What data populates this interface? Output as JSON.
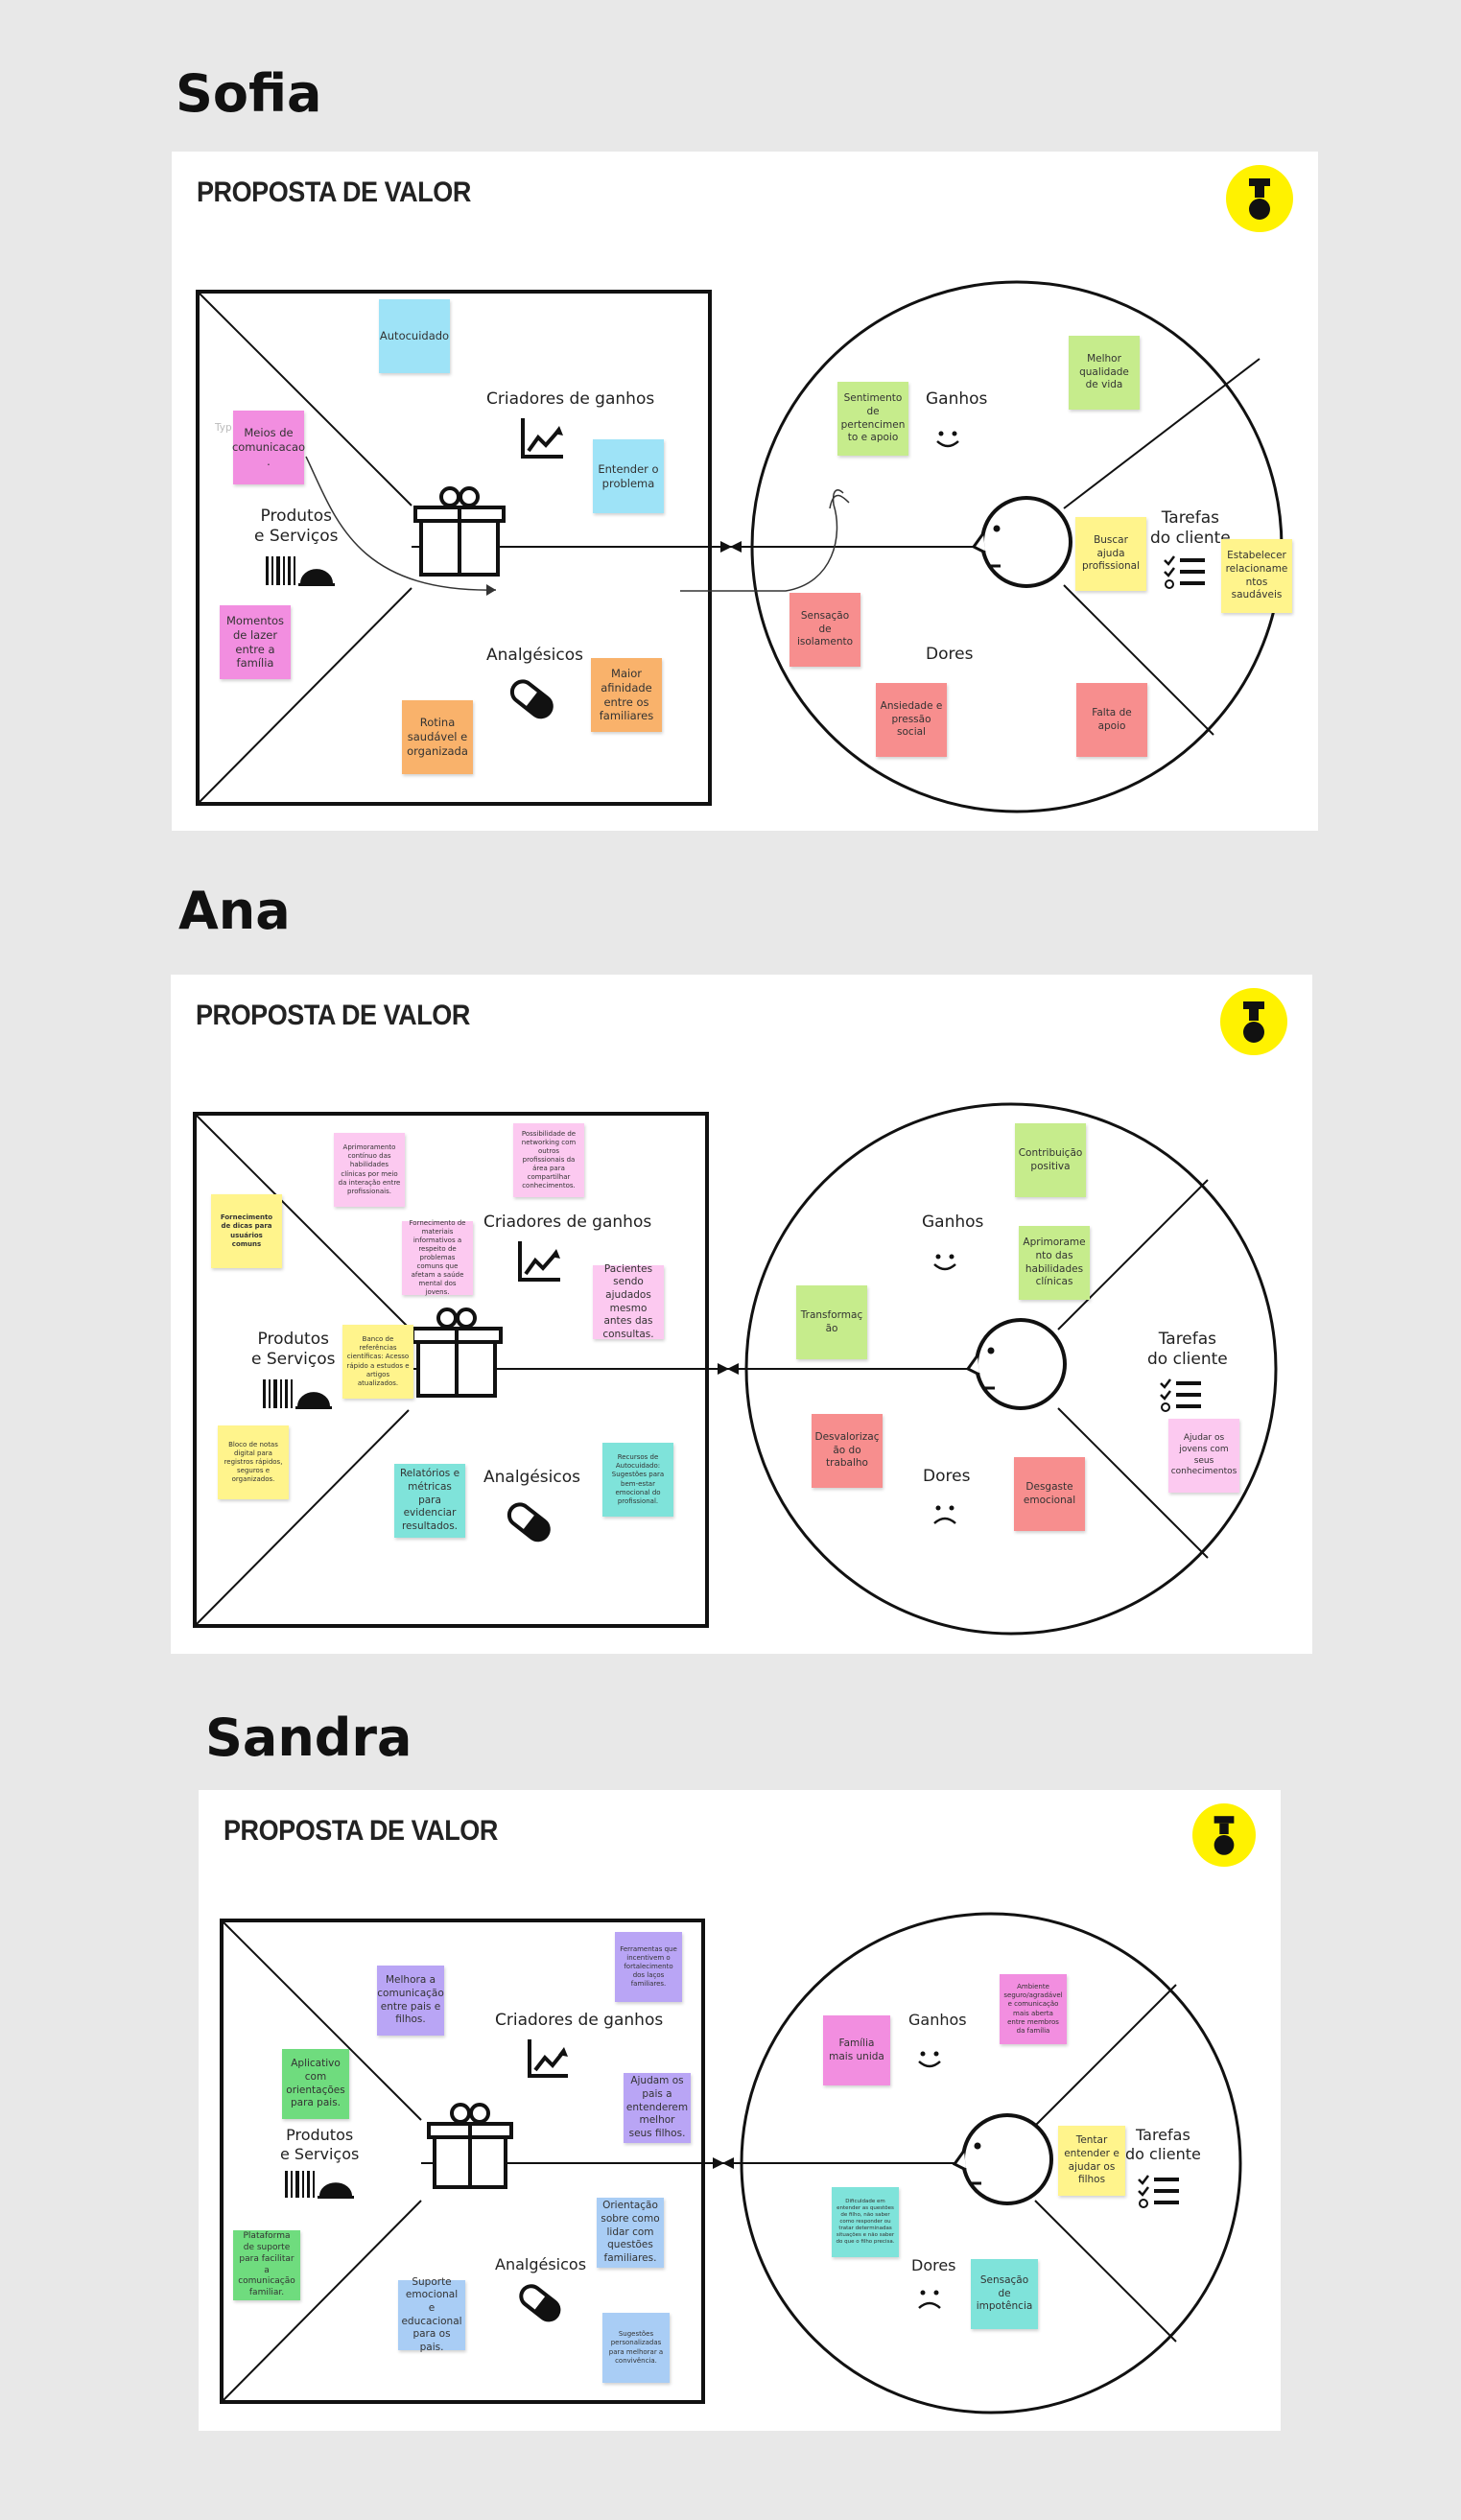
{
  "personas": [
    {
      "name": "Sofia",
      "title": "PROPOSTA DE VALOR",
      "labels": {
        "criadores": "Criadores de ganhos",
        "produtos": "Produtos\ne Serviços",
        "analgesicos": "Analgésicos",
        "ganhos": "Ganhos",
        "dores": "Dores",
        "tarefas": "Tarefas\ndo cliente"
      },
      "extra_text": "Typ",
      "stickies": [
        {
          "text": "Autocuidado",
          "color": "#9ee3f7"
        },
        {
          "text": "Meios de comunicacao .",
          "color": "#f28ee0"
        },
        {
          "text": "Entender o problema",
          "color": "#9ee3f7"
        },
        {
          "text": "Momentos de lazer entre a família",
          "color": "#f28ee0"
        },
        {
          "text": "Maior afinidade entre os familiares",
          "color": "#f9b26b"
        },
        {
          "text": "Rotina saudável e organizada",
          "color": "#f9b26b"
        },
        {
          "text": "Sentimento de pertencimen to e apoio",
          "color": "#c6ec8c"
        },
        {
          "text": "Melhor qualidade de vida",
          "color": "#c6ec8c"
        },
        {
          "text": "Buscar ajuda profissional",
          "color": "#fff48c"
        },
        {
          "text": "Estabelecer relacioname ntos saudáveis",
          "color": "#fff48c"
        },
        {
          "text": "Sensação de isolamento",
          "color": "#f78e8e"
        },
        {
          "text": "Ansiedade e pressão social",
          "color": "#f78e8e"
        },
        {
          "text": "Falta de apoio",
          "color": "#f78e8e"
        }
      ]
    },
    {
      "name": "Ana",
      "title": "PROPOSTA DE VALOR",
      "labels": {
        "criadores": "Criadores de ganhos",
        "produtos": "Produtos\ne Serviços",
        "analgesicos": "Analgésicos",
        "ganhos": "Ganhos",
        "dores": "Dores",
        "tarefas": "Tarefas\ndo cliente"
      },
      "stickies": [
        {
          "text": "Aprimoramento contínuo das habilidades clínicas por meio da interação entre profissionais.",
          "color": "#fcc9f0"
        },
        {
          "text": "Possibilidade de networking com outros profissionais da área para compartilhar conhecimentos.",
          "color": "#fcc9f0"
        },
        {
          "text": "Fornecimento de dicas para usuários comuns",
          "color": "#fff48c"
        },
        {
          "text": "Fornecimento de materiais informativos a respeito de problemas comuns que afetam a saúde mental dos jovens.",
          "color": "#fcc9f0"
        },
        {
          "text": "Pacientes sendo ajudados mesmo antes das consultas.",
          "color": "#fcc9f0"
        },
        {
          "text": "Banco de referências científicas: Acesso rápido a estudos e artigos atualizados.",
          "color": "#fff48c"
        },
        {
          "text": "Bloco de notas digital para registros rápidos, seguros e organizados.",
          "color": "#fff48c"
        },
        {
          "text": "Relatórios e métricas para evidenciar resultados.",
          "color": "#7fe3da"
        },
        {
          "text": "Recursos de Autocuidado: Sugestões para bem-estar emocional do profissional.",
          "color": "#7fe3da"
        },
        {
          "text": "Contribuição positiva",
          "color": "#c6ec8c"
        },
        {
          "text": "Aprimorame nto das habilidades clínicas",
          "color": "#c6ec8c"
        },
        {
          "text": "Transformaç ão",
          "color": "#c6ec8c"
        },
        {
          "text": "Desvalorizaç ão do trabalho",
          "color": "#f78e8e"
        },
        {
          "text": "Desgaste emocional",
          "color": "#f78e8e"
        },
        {
          "text": "Ajudar os jovens com seus conhecimentos",
          "color": "#fcc9f0"
        }
      ]
    },
    {
      "name": "Sandra",
      "title": "PROPOSTA DE VALOR",
      "labels": {
        "criadores": "Criadores de ganhos",
        "produtos": "Produtos\ne Serviços",
        "analgesicos": "Analgésicos",
        "ganhos": "Ganhos",
        "dores": "Dores",
        "tarefas": "Tarefas\ndo cliente"
      },
      "stickies": [
        {
          "text": "Melhora a comunicação entre pais e filhos.",
          "color": "#b9a5f5"
        },
        {
          "text": "Ferramentas que incentivem o fortalecimento dos laços familiares.",
          "color": "#b9a5f5"
        },
        {
          "text": "Aplicativo com orientações para pais.",
          "color": "#6fdc7e"
        },
        {
          "text": "Ajudam os pais a entenderem melhor seus filhos.",
          "color": "#b9a5f5"
        },
        {
          "text": "Plataforma de suporte para facilitar a comunicação familiar.",
          "color": "#6fdc7e"
        },
        {
          "text": "Orientação sobre como lidar com questões familiares.",
          "color": "#a9cdf5"
        },
        {
          "text": "Suporte emocional e educacional para os pais.",
          "color": "#a9cdf5"
        },
        {
          "text": "Sugestões personalizadas para melhorar a convivência.",
          "color": "#a9cdf5"
        },
        {
          "text": "Família mais unida",
          "color": "#f28ee0"
        },
        {
          "text": "Ambiente seguro/agradável e comunicação mais aberta entre membros da família",
          "color": "#f28ee0"
        },
        {
          "text": "Tentar entender e ajudar os filhos",
          "color": "#fff48c"
        },
        {
          "text": "Dificuldade em entender as questões de filho, não saber como responder ou tratar determinadas situações e não saber do que o filho precisa.",
          "color": "#7fe3da"
        },
        {
          "text": "Sensação de impotência",
          "color": "#7fe3da"
        }
      ]
    }
  ]
}
